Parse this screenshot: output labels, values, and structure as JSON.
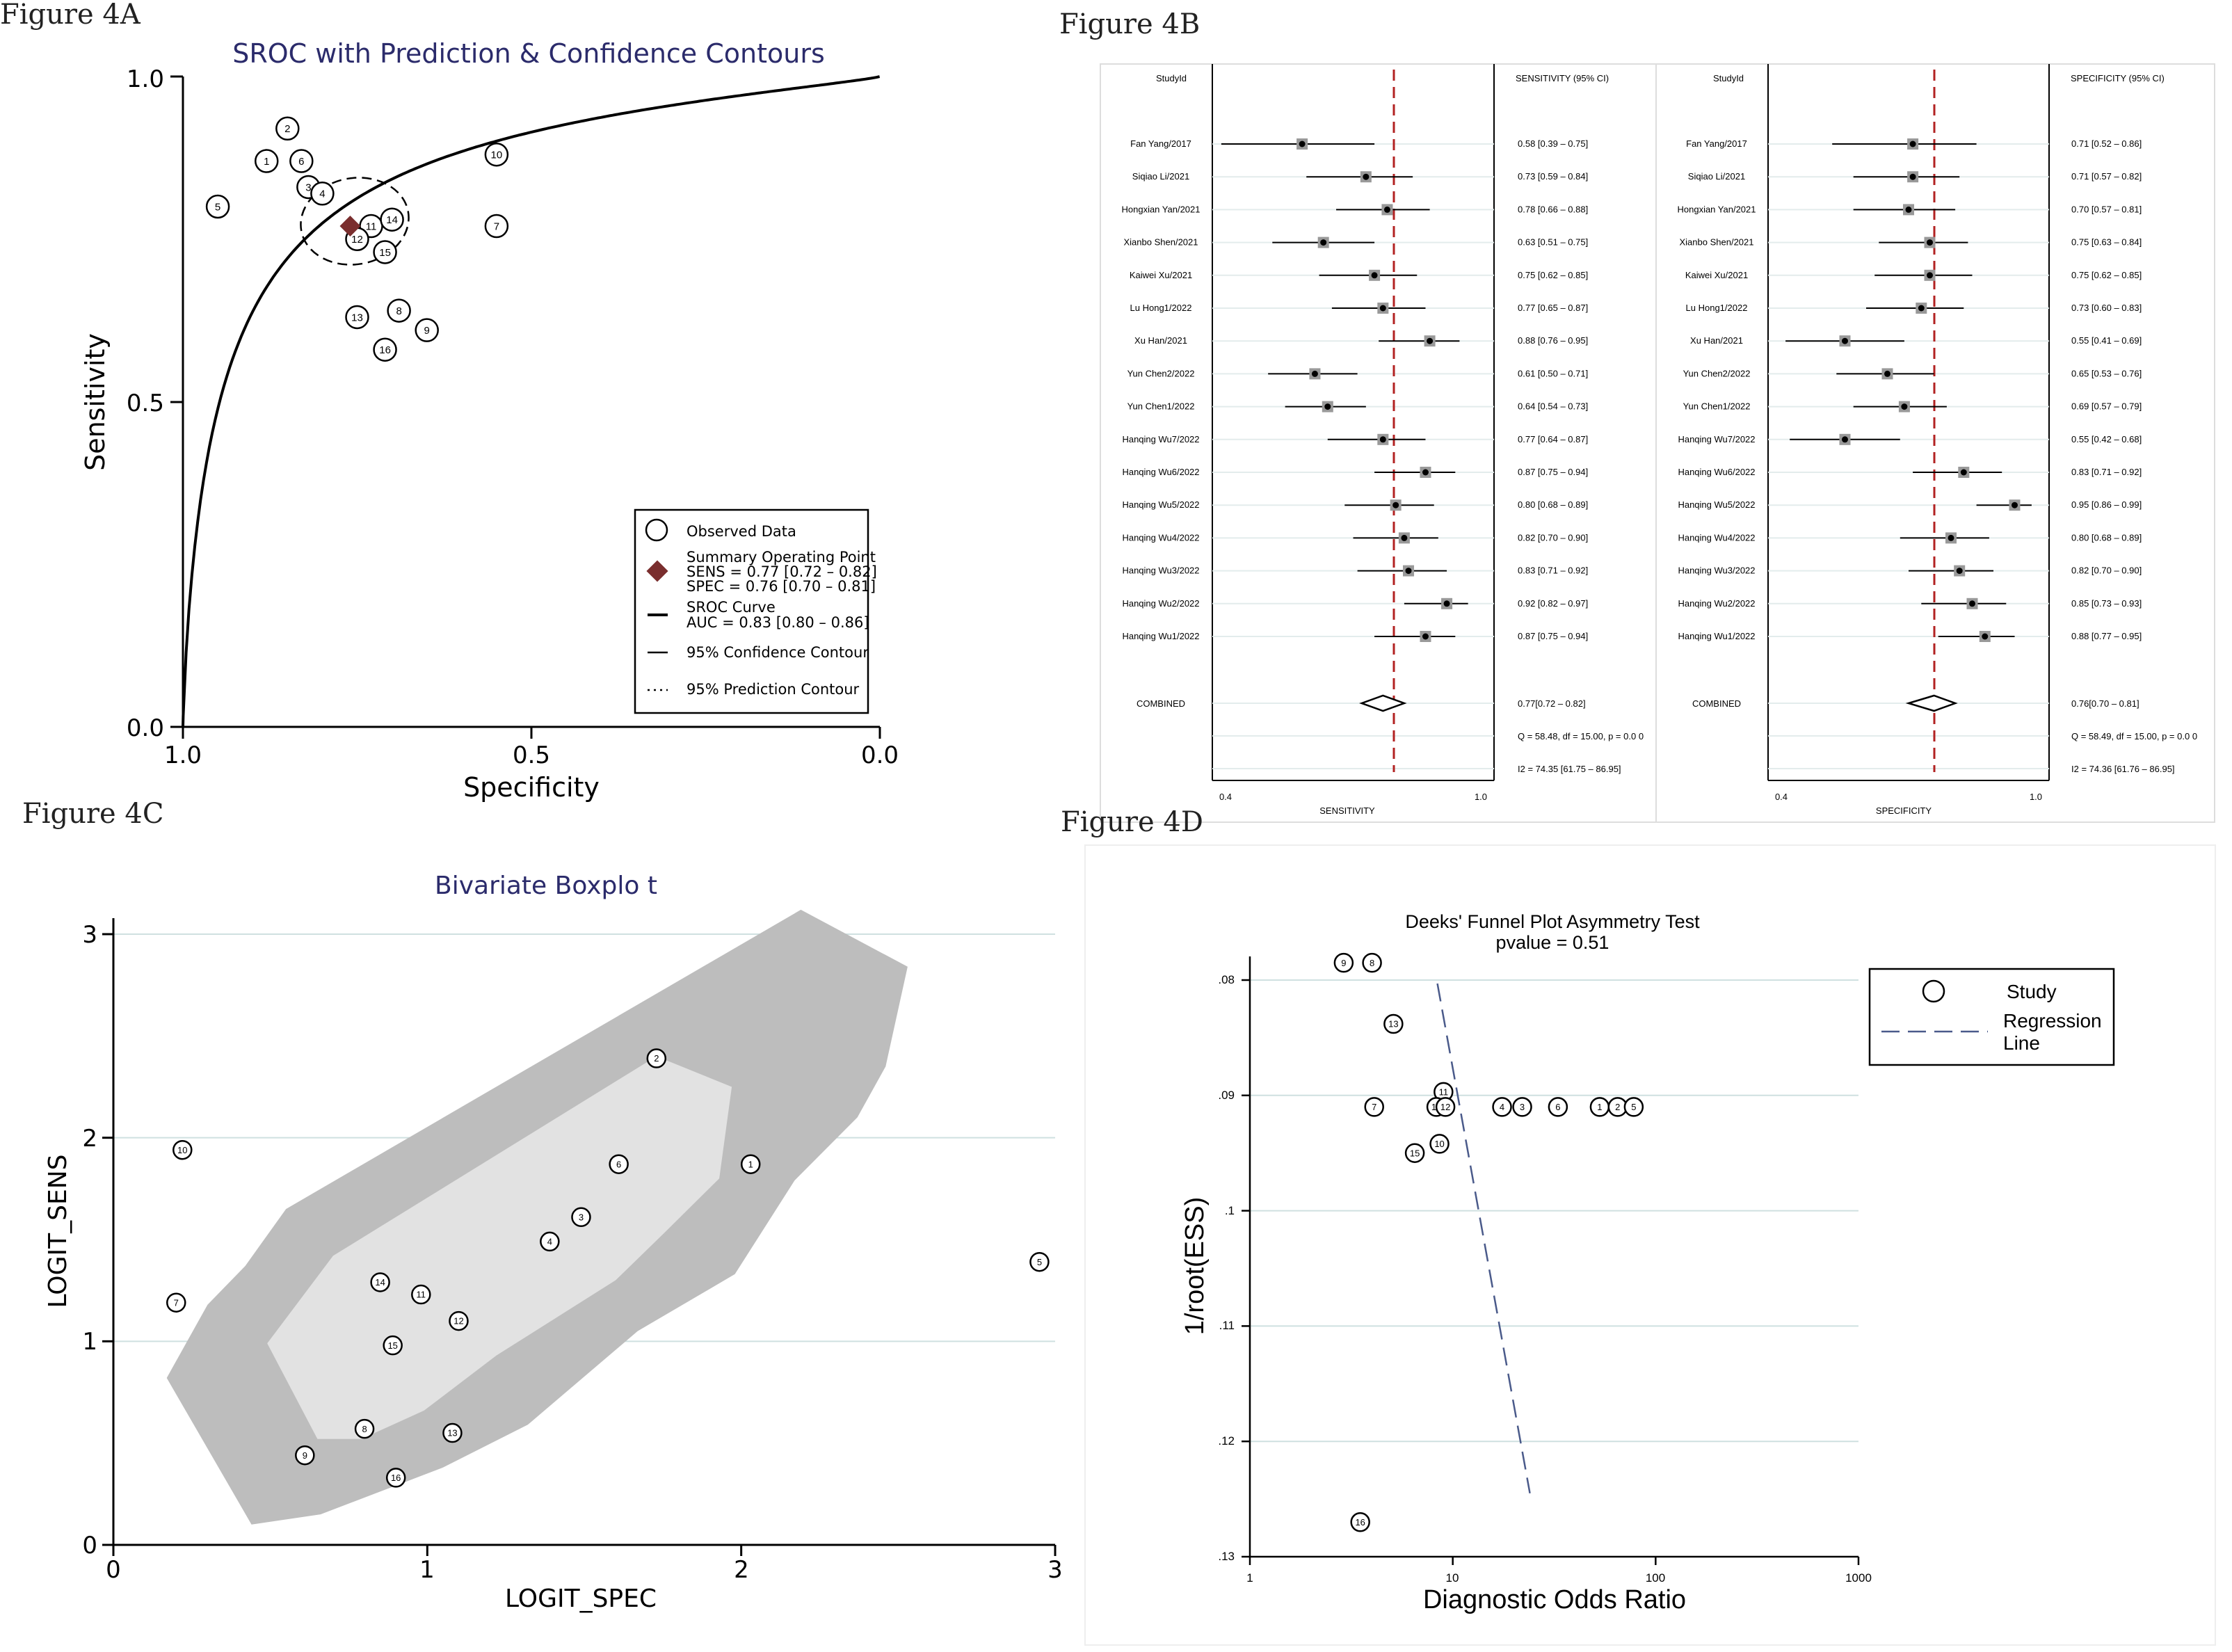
{
  "colors": {
    "axis": "#000000",
    "title": "#2b2b6b",
    "ref": "#b22222",
    "diamond": "#7a2e2e",
    "grid": "#cfe0e0",
    "hull_outer": "#bdbdbd",
    "hull_inner": "#e2e2e2",
    "regression": "#4a5a8a"
  },
  "chart_data": [
    {
      "panel": "Figure 4A",
      "type": "scatter",
      "title": "SROC with Prediction & Confidence Contours",
      "xlabel": "Specificity",
      "ylabel": "Sensitivity",
      "xlim": [
        1.0,
        0.0
      ],
      "ylim": [
        0.0,
        1.0
      ],
      "xticks": [
        "1.0",
        "0.5",
        "0.0"
      ],
      "yticks": [
        "0.0",
        "0.5",
        "1.0"
      ],
      "points": [
        {
          "id": "1",
          "spec": 0.88,
          "sens": 0.87
        },
        {
          "id": "2",
          "spec": 0.85,
          "sens": 0.92
        },
        {
          "id": "3",
          "spec": 0.82,
          "sens": 0.83
        },
        {
          "id": "4",
          "spec": 0.8,
          "sens": 0.82
        },
        {
          "id": "5",
          "spec": 0.95,
          "sens": 0.8
        },
        {
          "id": "6",
          "spec": 0.83,
          "sens": 0.87
        },
        {
          "id": "7",
          "spec": 0.55,
          "sens": 0.77
        },
        {
          "id": "8",
          "spec": 0.69,
          "sens": 0.64
        },
        {
          "id": "9",
          "spec": 0.65,
          "sens": 0.61
        },
        {
          "id": "10",
          "spec": 0.55,
          "sens": 0.88
        },
        {
          "id": "11",
          "spec": 0.73,
          "sens": 0.77
        },
        {
          "id": "12",
          "spec": 0.75,
          "sens": 0.75
        },
        {
          "id": "13",
          "spec": 0.75,
          "sens": 0.63
        },
        {
          "id": "14",
          "spec": 0.7,
          "sens": 0.78
        },
        {
          "id": "15",
          "spec": 0.71,
          "sens": 0.73
        },
        {
          "id": "16",
          "spec": 0.71,
          "sens": 0.58
        }
      ],
      "summary_point": {
        "spec": 0.76,
        "sens": 0.77
      },
      "legend": {
        "observed": "Observed Data",
        "summary_title": "Summary Operating Point",
        "summary_sens": "SENS = 0.77 [0.72 – 0.82]",
        "summary_spec": "SPEC = 0.76 [0.70 – 0.81]",
        "sroc_title": "SROC Curve",
        "sroc_auc": "AUC = 0.83 [0.80 – 0.86]",
        "confidence": "95% Confidence Contour",
        "prediction": "95% Prediction Contour"
      }
    },
    {
      "panel": "Figure 4B",
      "type": "forest",
      "header_study": "StudyId",
      "header_sens": "SENSITIVITY (95% CI)",
      "header_spec": "SPECIFICITY (95% CI)",
      "xlabel_sens": "SENSITIVITY",
      "xlabel_spec": "SPECIFICITY",
      "xticks": [
        "0.4",
        "1.0"
      ],
      "studies": [
        {
          "name": "Fan Yang/2017",
          "sens": 0.58,
          "sens_lo": 0.39,
          "sens_hi": 0.75,
          "sens_text": "0.58 [0.39 – 0.75]",
          "spec": 0.71,
          "spec_lo": 0.52,
          "spec_hi": 0.86,
          "spec_text": "0.71 [0.52 – 0.86]"
        },
        {
          "name": "Siqiao Li/2021",
          "sens": 0.73,
          "sens_lo": 0.59,
          "sens_hi": 0.84,
          "sens_text": "0.73 [0.59 – 0.84]",
          "spec": 0.71,
          "spec_lo": 0.57,
          "spec_hi": 0.82,
          "spec_text": "0.71 [0.57 – 0.82]"
        },
        {
          "name": "Hongxian Yan/2021",
          "sens": 0.78,
          "sens_lo": 0.66,
          "sens_hi": 0.88,
          "sens_text": "0.78 [0.66 – 0.88]",
          "spec": 0.7,
          "spec_lo": 0.57,
          "spec_hi": 0.81,
          "spec_text": "0.70 [0.57 – 0.81]"
        },
        {
          "name": "Xianbo Shen/2021",
          "sens": 0.63,
          "sens_lo": 0.51,
          "sens_hi": 0.75,
          "sens_text": "0.63 [0.51 – 0.75]",
          "spec": 0.75,
          "spec_lo": 0.63,
          "spec_hi": 0.84,
          "spec_text": "0.75 [0.63 – 0.84]"
        },
        {
          "name": "Kaiwei Xu/2021",
          "sens": 0.75,
          "sens_lo": 0.62,
          "sens_hi": 0.85,
          "sens_text": "0.75 [0.62 – 0.85]",
          "spec": 0.75,
          "spec_lo": 0.62,
          "spec_hi": 0.85,
          "spec_text": "0.75 [0.62 – 0.85]"
        },
        {
          "name": "Lu Hong1/2022",
          "sens": 0.77,
          "sens_lo": 0.65,
          "sens_hi": 0.87,
          "sens_text": "0.77 [0.65 – 0.87]",
          "spec": 0.73,
          "spec_lo": 0.6,
          "spec_hi": 0.83,
          "spec_text": "0.73 [0.60 – 0.83]"
        },
        {
          "name": "Xu Han/2021",
          "sens": 0.88,
          "sens_lo": 0.76,
          "sens_hi": 0.95,
          "sens_text": "0.88 [0.76 – 0.95]",
          "spec": 0.55,
          "spec_lo": 0.41,
          "spec_hi": 0.69,
          "spec_text": "0.55 [0.41 – 0.69]"
        },
        {
          "name": "Yun Chen2/2022",
          "sens": 0.61,
          "sens_lo": 0.5,
          "sens_hi": 0.71,
          "sens_text": "0.61 [0.50 – 0.71]",
          "spec": 0.65,
          "spec_lo": 0.53,
          "spec_hi": 0.76,
          "spec_text": "0.65 [0.53 – 0.76]"
        },
        {
          "name": "Yun Chen1/2022",
          "sens": 0.64,
          "sens_lo": 0.54,
          "sens_hi": 0.73,
          "sens_text": "0.64 [0.54 – 0.73]",
          "spec": 0.69,
          "spec_lo": 0.57,
          "spec_hi": 0.79,
          "spec_text": "0.69 [0.57 – 0.79]"
        },
        {
          "name": "Hanqing Wu7/2022",
          "sens": 0.77,
          "sens_lo": 0.64,
          "sens_hi": 0.87,
          "sens_text": "0.77 [0.64 – 0.87]",
          "spec": 0.55,
          "spec_lo": 0.42,
          "spec_hi": 0.68,
          "spec_text": "0.55 [0.42 – 0.68]"
        },
        {
          "name": "Hanqing Wu6/2022",
          "sens": 0.87,
          "sens_lo": 0.75,
          "sens_hi": 0.94,
          "sens_text": "0.87 [0.75 – 0.94]",
          "spec": 0.83,
          "spec_lo": 0.71,
          "spec_hi": 0.92,
          "spec_text": "0.83 [0.71 – 0.92]"
        },
        {
          "name": "Hanqing Wu5/2022",
          "sens": 0.8,
          "sens_lo": 0.68,
          "sens_hi": 0.89,
          "sens_text": "0.80 [0.68 – 0.89]",
          "spec": 0.95,
          "spec_lo": 0.86,
          "spec_hi": 0.99,
          "spec_text": "0.95 [0.86 – 0.99]"
        },
        {
          "name": "Hanqing Wu4/2022",
          "sens": 0.82,
          "sens_lo": 0.7,
          "sens_hi": 0.9,
          "sens_text": "0.82 [0.70 – 0.90]",
          "spec": 0.8,
          "spec_lo": 0.68,
          "spec_hi": 0.89,
          "spec_text": "0.80 [0.68 – 0.89]"
        },
        {
          "name": "Hanqing Wu3/2022",
          "sens": 0.83,
          "sens_lo": 0.71,
          "sens_hi": 0.92,
          "sens_text": "0.83 [0.71 – 0.92]",
          "spec": 0.82,
          "spec_lo": 0.7,
          "spec_hi": 0.9,
          "spec_text": "0.82 [0.70 – 0.90]"
        },
        {
          "name": "Hanqing Wu2/2022",
          "sens": 0.92,
          "sens_lo": 0.82,
          "sens_hi": 0.97,
          "sens_text": "0.92 [0.82 – 0.97]",
          "spec": 0.85,
          "spec_lo": 0.73,
          "spec_hi": 0.93,
          "spec_text": "0.85 [0.73 – 0.93]"
        },
        {
          "name": "Hanqing Wu1/2022",
          "sens": 0.87,
          "sens_lo": 0.75,
          "sens_hi": 0.94,
          "sens_text": "0.87 [0.75 – 0.94]",
          "spec": 0.88,
          "spec_lo": 0.77,
          "spec_hi": 0.95,
          "spec_text": "0.88 [0.77 – 0.95]"
        }
      ],
      "combined": {
        "label": "COMBINED",
        "sens": 0.77,
        "sens_lo": 0.72,
        "sens_hi": 0.82,
        "sens_text": "0.77[0.72 – 0.82]",
        "spec": 0.76,
        "spec_lo": 0.7,
        "spec_hi": 0.81,
        "spec_text": "0.76[0.70 – 0.81]"
      },
      "het_sens_q": "Q = 58.48, df = 15.00, p = 0.0 0",
      "het_sens_i2": "I2 = 74.35 [61.75 – 86.95]",
      "het_spec_q": "Q = 58.49, df = 15.00, p = 0.0 0",
      "het_spec_i2": "I2 = 74.36 [61.76 – 86.95]"
    },
    {
      "panel": "Figure 4C",
      "type": "scatter",
      "title": "Bivariate Boxplo t",
      "xlabel": "LOGIT_SPEC",
      "ylabel": "LOGIT_SENS",
      "xlim": [
        0,
        3
      ],
      "ylim": [
        0,
        3.15
      ],
      "xticks": [
        "0",
        "1",
        "2",
        "3"
      ],
      "yticks": [
        "0",
        "1",
        "2",
        "3"
      ],
      "points": [
        {
          "id": "1",
          "x": 2.03,
          "y": 1.87
        },
        {
          "id": "2",
          "x": 1.73,
          "y": 2.39
        },
        {
          "id": "3",
          "x": 1.49,
          "y": 1.61
        },
        {
          "id": "4",
          "x": 1.39,
          "y": 1.49
        },
        {
          "id": "5",
          "x": 2.95,
          "y": 1.39
        },
        {
          "id": "6",
          "x": 1.61,
          "y": 1.87
        },
        {
          "id": "7",
          "x": 0.2,
          "y": 1.19
        },
        {
          "id": "8",
          "x": 0.8,
          "y": 0.57
        },
        {
          "id": "9",
          "x": 0.61,
          "y": 0.44
        },
        {
          "id": "10",
          "x": 0.22,
          "y": 1.94
        },
        {
          "id": "11",
          "x": 0.98,
          "y": 1.23
        },
        {
          "id": "12",
          "x": 1.1,
          "y": 1.1
        },
        {
          "id": "13",
          "x": 1.08,
          "y": 0.55
        },
        {
          "id": "14",
          "x": 0.85,
          "y": 1.29
        },
        {
          "id": "15",
          "x": 0.89,
          "y": 0.98
        },
        {
          "id": "16",
          "x": 0.9,
          "y": 0.33
        }
      ]
    },
    {
      "panel": "Figure 4D",
      "type": "scatter",
      "title": "Deeks' Funnel Plot Asymmetry Test",
      "subtitle": "pvalue =   0.51",
      "xlabel": "Diagnostic Odds Ratio",
      "ylabel": "1/root(ESS)",
      "xscale": "log",
      "xlim": [
        1,
        1000
      ],
      "ylim": [
        0.0755,
        0.13
      ],
      "xticks": [
        "1",
        "10",
        "100",
        "1000"
      ],
      "yticks": [
        ".08",
        ".09",
        ".1",
        ".11",
        ".12",
        ".13"
      ],
      "points": [
        {
          "id": "9",
          "x": 2.9,
          "y": 0.0785
        },
        {
          "id": "8",
          "x": 4.0,
          "y": 0.0785
        },
        {
          "id": "13",
          "x": 5.1,
          "y": 0.0838
        },
        {
          "id": "11",
          "x": 9.0,
          "y": 0.0897
        },
        {
          "id": "7",
          "x": 4.1,
          "y": 0.091
        },
        {
          "id": "14",
          "x": 8.3,
          "y": 0.091
        },
        {
          "id": "12",
          "x": 9.2,
          "y": 0.091
        },
        {
          "id": "4",
          "x": 17.5,
          "y": 0.091
        },
        {
          "id": "3",
          "x": 22,
          "y": 0.091
        },
        {
          "id": "6",
          "x": 33,
          "y": 0.091
        },
        {
          "id": "1",
          "x": 53,
          "y": 0.091
        },
        {
          "id": "2",
          "x": 65,
          "y": 0.091
        },
        {
          "id": "5",
          "x": 78,
          "y": 0.091
        },
        {
          "id": "10",
          "x": 8.6,
          "y": 0.0942
        },
        {
          "id": "15",
          "x": 6.5,
          "y": 0.095
        },
        {
          "id": "16",
          "x": 3.5,
          "y": 0.127
        }
      ],
      "regression": {
        "x1": 8.4,
        "y1": 0.0803,
        "x2": 24,
        "y2": 0.1245
      },
      "legend": {
        "study": "Study",
        "regression": "Regression",
        "regression2": "Line"
      }
    }
  ],
  "panel_labels": {
    "a": "Figure 4A",
    "b": "Figure 4B",
    "c": "Figure 4C",
    "d": "Figure 4D"
  }
}
